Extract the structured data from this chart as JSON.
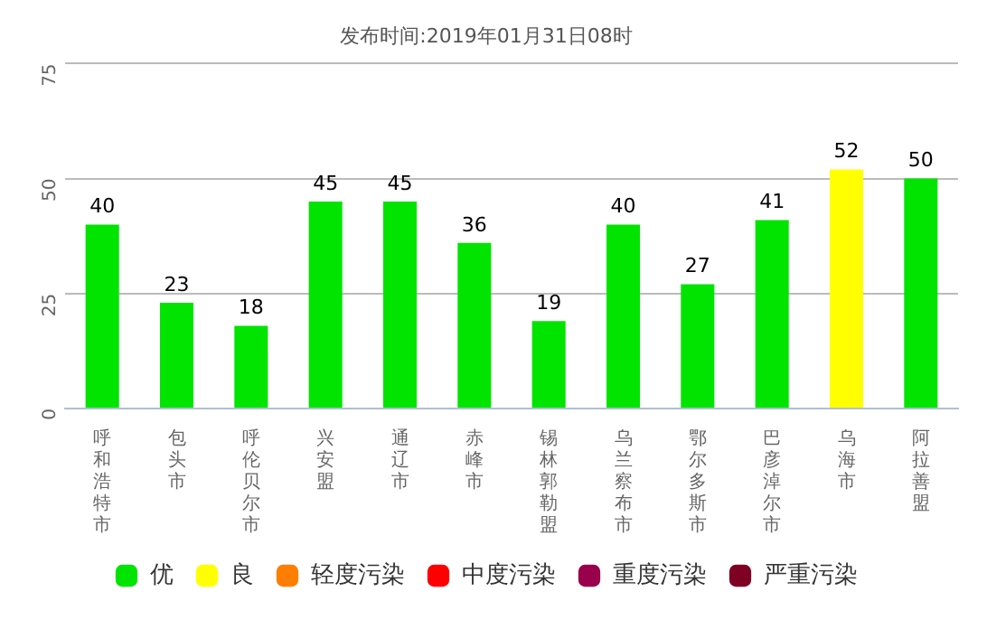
{
  "chart_data": {
    "type": "bar",
    "title": "发布时间:2019年01月31日08时",
    "categories": [
      "呼和浩特市",
      "包头市",
      "呼伦贝尔市",
      "兴安盟",
      "通辽市",
      "赤峰市",
      "锡林郭勒盟",
      "乌兰察布市",
      "鄂尔多斯市",
      "巴彦淖尔市",
      "乌海市",
      "阿拉善盟"
    ],
    "series": [
      {
        "name": "优",
        "color": "#00e400",
        "values": [
          40,
          23,
          18,
          45,
          45,
          36,
          19,
          40,
          27,
          41,
          null,
          50
        ]
      },
      {
        "name": "良",
        "color": "#ffff00",
        "values": [
          null,
          null,
          null,
          null,
          null,
          null,
          null,
          null,
          null,
          null,
          52,
          null
        ]
      },
      {
        "name": "轻度污染",
        "color": "#ff7e00",
        "values": [
          null,
          null,
          null,
          null,
          null,
          null,
          null,
          null,
          null,
          null,
          null,
          null
        ]
      },
      {
        "name": "中度污染",
        "color": "#ff0000",
        "values": [
          null,
          null,
          null,
          null,
          null,
          null,
          null,
          null,
          null,
          null,
          null,
          null
        ]
      },
      {
        "name": "重度污染",
        "color": "#99004c",
        "values": [
          null,
          null,
          null,
          null,
          null,
          null,
          null,
          null,
          null,
          null,
          null,
          null
        ]
      },
      {
        "name": "严重污染",
        "color": "#7e0023",
        "values": [
          null,
          null,
          null,
          null,
          null,
          null,
          null,
          null,
          null,
          null,
          null,
          null
        ]
      }
    ],
    "stacked": true,
    "ylim": [
      0,
      75
    ],
    "yticks": [
      0,
      25,
      50,
      75
    ],
    "grid": "y",
    "legend": "bottom",
    "data_labels": true
  }
}
